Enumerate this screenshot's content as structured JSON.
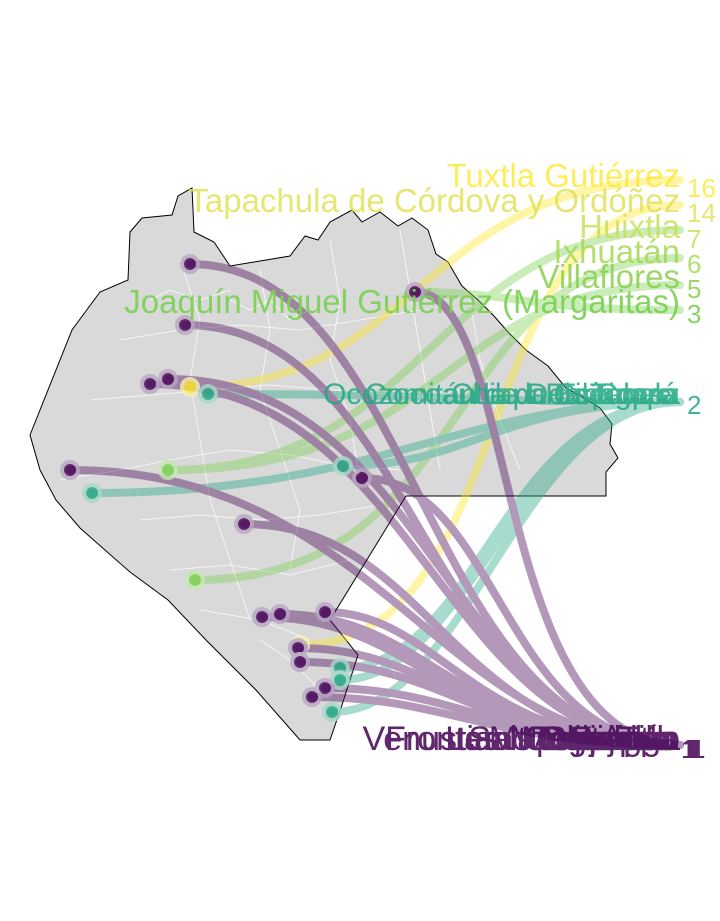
{
  "colors": {
    "land": "#d9d9d9",
    "border": "#000000",
    "internal_border": "#ffffff",
    "count_1": "#440154",
    "count_2": "#22a884",
    "count_3": "#7ad151",
    "count_high": "#fde725"
  },
  "labels": {
    "top": [
      {
        "name": "Tuxtla Gutiérrez",
        "count": "16",
        "level": "high"
      },
      {
        "name": "Tapachula de Córdova y Ordóñez",
        "count": "14",
        "level": "high"
      },
      {
        "name": "Huixtla",
        "count": "7",
        "level": "mid"
      },
      {
        "name": "Ixhuatán",
        "count": "6",
        "level": "mid"
      },
      {
        "name": "Villaflores",
        "count": "5",
        "level": "mid"
      },
      {
        "name": "Joaquín Miguel Gutiérrez (Margaritas)",
        "count": "3",
        "level": "mid"
      }
    ],
    "middle": {
      "names": [
        "Comitán de Domínguez",
        "Ocozocoautla de Espinosa",
        "Chiapa de Corzo",
        "Palenque",
        "Tonalá",
        "Cintalapa"
      ],
      "count": "2"
    },
    "bottom": {
      "names": [
        "Ocosingo",
        "Motozintla",
        "Tila",
        "Salto de Agua",
        "Teopisca",
        "Pijijiapan",
        "Mapastepec",
        "Venustiano Carranza",
        "Frontera Comalapa",
        "Las Margaritas",
        "Yajalón",
        "Bochil"
      ],
      "counts": [
        "1",
        "1",
        "1",
        "1",
        "1",
        "1"
      ]
    }
  }
}
